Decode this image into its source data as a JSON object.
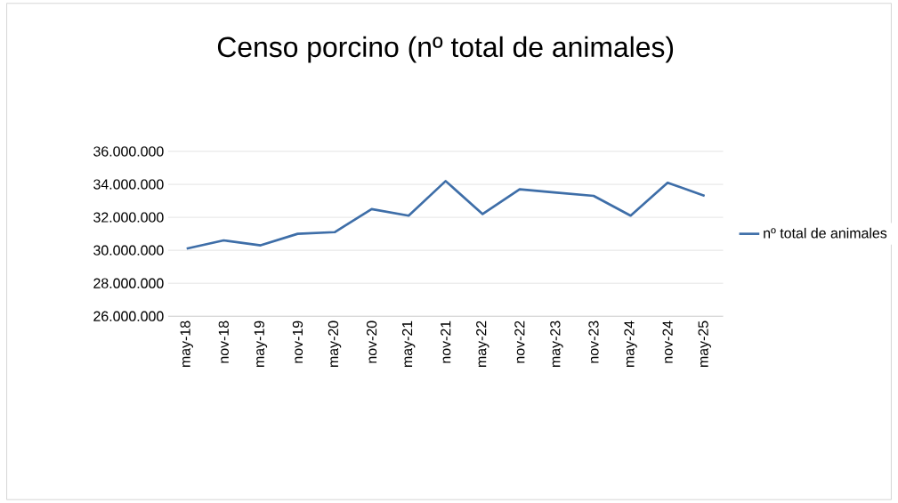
{
  "chart_data": {
    "type": "line",
    "title": "Censo porcino (nº total de animales)",
    "categories": [
      "may-18",
      "nov-18",
      "may-19",
      "nov-19",
      "may-20",
      "nov-20",
      "may-21",
      "nov-21",
      "may-22",
      "nov-22",
      "may-23",
      "nov-23",
      "may-24",
      "nov-24",
      "may-25"
    ],
    "series": [
      {
        "name": "nº total de animales",
        "color": "#3e6ea8",
        "values": [
          30100000,
          30600000,
          30300000,
          31000000,
          31100000,
          32500000,
          32100000,
          34200000,
          32200000,
          33700000,
          33500000,
          33300000,
          32100000,
          34100000,
          33300000
        ]
      }
    ],
    "ylim": [
      26000000,
      36000000
    ],
    "yticks": [
      {
        "value": 26000000,
        "label": "26.000.000"
      },
      {
        "value": 28000000,
        "label": "28.000.000"
      },
      {
        "value": 30000000,
        "label": "30.000.000"
      },
      {
        "value": 32000000,
        "label": "32.000.000"
      },
      {
        "value": 34000000,
        "label": "34.000.000"
      },
      {
        "value": 36000000,
        "label": "36.000.000"
      }
    ],
    "grid": "y",
    "legend": "right",
    "marker": "none",
    "line_style": "solid"
  }
}
